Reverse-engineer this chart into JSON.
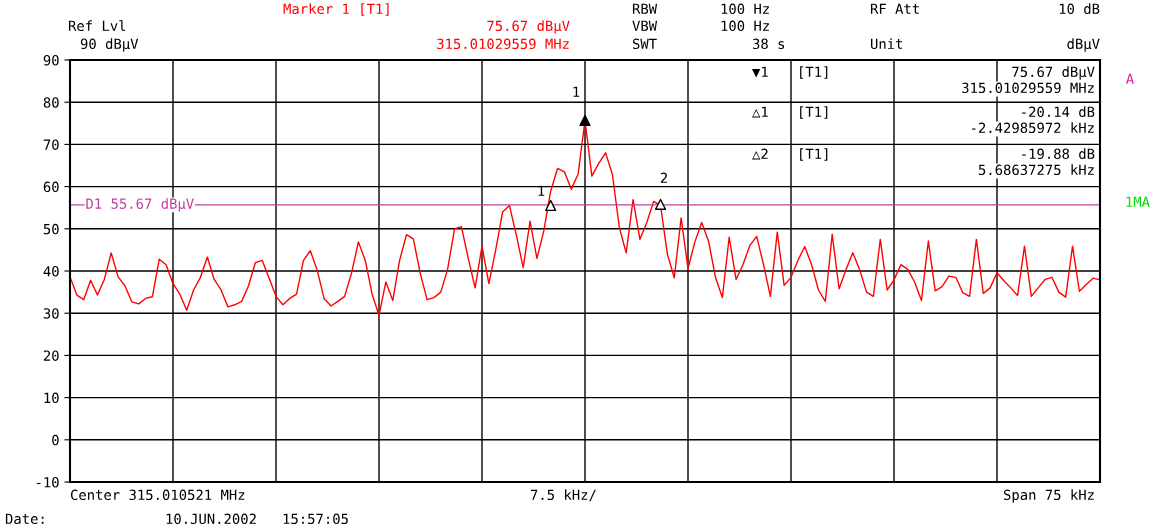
{
  "chart_data": {
    "type": "line",
    "categories": [
      null,
      null,
      null,
      null,
      null,
      null,
      null,
      null,
      null,
      null,
      null,
      null,
      null,
      null,
      null,
      null,
      null,
      null,
      null,
      null,
      null,
      null,
      null,
      null,
      null,
      null,
      null,
      null,
      null,
      null,
      null,
      null,
      null,
      null,
      null,
      null,
      null,
      null,
      null,
      null,
      null,
      null,
      null,
      null,
      null,
      null,
      null,
      null,
      null,
      null,
      null,
      null,
      null,
      null,
      null,
      null,
      null,
      null,
      null,
      null,
      null,
      null,
      null,
      null,
      null,
      null,
      null,
      null,
      null,
      null,
      null,
      null,
      null,
      null,
      null,
      null,
      null,
      null,
      null,
      null,
      null,
      null,
      null,
      null,
      null,
      null,
      null,
      null,
      null,
      null,
      null,
      null,
      null,
      null,
      null,
      null,
      null,
      null,
      null,
      null,
      null,
      null,
      null,
      null,
      null,
      null,
      null,
      null,
      null,
      null,
      null,
      null,
      null,
      null,
      null,
      null,
      null,
      null,
      null,
      null,
      null,
      null,
      null,
      null,
      null,
      null,
      null,
      null,
      null,
      null,
      null,
      null,
      null,
      null,
      null,
      null,
      null,
      null,
      null,
      null,
      null,
      null,
      null,
      null,
      null,
      null,
      null,
      null,
      null,
      null,
      null
    ],
    "series": [
      {
        "color": "#ff0000",
        "marker": "none",
        "values": [
          38.6,
          34.3,
          33.2,
          37.8,
          34.3,
          38.0,
          44.3,
          38.6,
          36.5,
          32.7,
          32.2,
          33.5,
          33.9,
          42.8,
          41.5,
          37.0,
          34.5,
          30.7,
          35.5,
          38.5,
          43.3,
          38.0,
          35.5,
          31.5,
          32.0,
          32.8,
          36.5,
          42.0,
          42.5,
          38.3,
          34.0,
          32.0,
          33.5,
          34.5,
          42.5,
          44.8,
          40.2,
          33.5,
          31.7,
          32.8,
          34.0,
          39.5,
          46.9,
          42.5,
          34.5,
          29.5,
          37.4,
          33.0,
          42.5,
          48.6,
          47.6,
          39.5,
          33.2,
          33.7,
          35.0,
          40.5,
          50.0,
          50.5,
          43.0,
          36.0,
          45.9,
          37.0,
          45.0,
          54.0,
          55.5,
          48.5,
          40.8,
          51.8,
          43.0,
          49.5,
          58.9,
          64.3,
          63.5,
          59.4,
          63.0,
          75.67,
          62.5,
          65.5,
          68.0,
          62.8,
          50.3,
          44.3,
          56.9,
          47.5,
          51.5,
          56.5,
          55.5,
          44.0,
          38.4,
          52.6,
          40.6,
          46.9,
          51.5,
          47.0,
          38.5,
          33.7,
          48.0,
          38.0,
          41.5,
          46.0,
          48.2,
          41.5,
          34.0,
          49.2,
          36.6,
          38.5,
          42.5,
          45.8,
          41.5,
          35.5,
          32.8,
          48.7,
          35.8,
          40.3,
          44.3,
          40.3,
          35.0,
          34.0,
          47.5,
          35.5,
          37.9,
          41.5,
          40.4,
          37.4,
          33.0,
          47.1,
          35.3,
          36.3,
          38.8,
          38.5,
          34.9,
          34.0,
          47.5,
          34.7,
          36.0,
          39.6,
          37.7,
          36.0,
          34.2,
          45.9,
          34.0,
          36.0,
          38.0,
          38.5,
          35.0,
          33.8,
          45.9,
          35.2,
          36.8,
          38.3,
          37.9
        ]
      },
      {
        "type": "scatter",
        "color": "#000000",
        "marker": "triangle",
        "values": [
          null,
          null,
          null,
          null,
          null,
          null,
          null,
          null,
          null,
          null,
          null,
          null,
          null,
          null,
          null,
          null,
          null,
          null,
          null,
          null,
          null,
          null,
          null,
          null,
          null,
          null,
          null,
          null,
          null,
          null,
          null,
          null,
          null,
          null,
          null,
          null,
          null,
          null,
          null,
          null,
          null,
          null,
          null,
          null,
          null,
          null,
          null,
          null,
          null,
          null,
          null,
          null,
          null,
          null,
          null,
          null,
          null,
          null,
          null,
          null,
          null,
          null,
          null,
          null,
          null,
          null,
          null,
          null,
          null,
          null,
          null,
          null,
          null,
          null,
          null,
          75.67,
          null,
          null,
          null,
          null,
          null,
          null,
          null,
          null,
          null,
          null,
          null,
          null,
          null,
          null,
          null,
          null,
          null,
          null,
          null,
          null,
          null,
          null,
          null,
          null,
          null,
          null,
          null,
          null,
          null,
          null,
          null,
          null,
          null,
          null,
          null,
          null,
          null,
          null,
          null,
          null,
          null,
          null,
          null,
          null,
          null,
          null,
          null,
          null,
          null,
          null,
          null,
          null,
          null,
          null,
          null,
          null,
          null,
          null,
          null,
          null,
          null,
          null,
          null,
          null,
          null,
          null,
          null,
          null,
          null,
          null,
          null,
          null,
          null,
          null,
          null
        ]
      },
      {
        "type": "scatter",
        "color": "#ffffff",
        "marker": "triangle",
        "values": [
          null,
          null,
          null,
          null,
          null,
          null,
          null,
          null,
          null,
          null,
          null,
          null,
          null,
          null,
          null,
          null,
          null,
          null,
          null,
          null,
          null,
          null,
          null,
          null,
          null,
          null,
          null,
          null,
          null,
          null,
          null,
          null,
          null,
          null,
          null,
          null,
          null,
          null,
          null,
          null,
          null,
          null,
          null,
          null,
          null,
          null,
          null,
          null,
          null,
          null,
          null,
          null,
          null,
          null,
          null,
          null,
          null,
          null,
          null,
          null,
          null,
          null,
          null,
          null,
          null,
          null,
          null,
          null,
          null,
          null,
          55.53,
          null,
          null,
          null,
          null,
          null,
          null,
          null,
          null,
          null,
          null,
          null,
          null,
          null,
          null,
          null,
          55.79,
          null,
          null,
          null,
          null,
          null,
          null,
          null,
          null,
          null,
          null,
          null,
          null,
          null,
          null,
          null,
          null,
          null,
          null,
          null,
          null,
          null,
          null,
          null,
          null,
          null,
          null,
          null,
          null,
          null,
          null,
          null,
          null,
          null,
          null,
          null,
          null,
          null,
          null,
          null,
          null,
          null,
          null,
          null,
          null,
          null,
          null,
          null,
          null,
          null,
          null,
          null,
          null,
          null,
          null,
          null,
          null,
          null,
          null,
          null,
          null,
          null,
          null,
          null,
          null
        ]
      }
    ],
    "ylim": [
      -10,
      90
    ],
    "yticks": [
      -10,
      0,
      10,
      20,
      30,
      40,
      50,
      60,
      70,
      80,
      90
    ],
    "grid": true,
    "line_style": "solid",
    "ref_lines": [
      {
        "axis": "y",
        "value": 55.67,
        "label": "D1 55.67 dBµV",
        "color": "#c040a0"
      }
    ],
    "annotations": [
      "Ref Lvl",
      "90 dBµV",
      "Marker 1 [T1]",
      "75.67 dBµV",
      "315.01029559 MHz",
      "RBW",
      "100 Hz",
      "VBW",
      "100 Hz",
      "SWT",
      "38 s",
      "RF Att",
      "10 dB",
      "Unit",
      "dBµV",
      "▼1",
      "[T1]",
      "75.67 dBµV",
      "315.01029559 MHz",
      "△1",
      "[T1]",
      "-20.14 dB",
      "-2.42985972 kHz",
      "△2",
      "[T1]",
      "-19.88 dB",
      "5.68637275 kHz",
      "A",
      "1MA",
      "Center 315.010521 MHz",
      "7.5 kHz/",
      "Span 75 kHz",
      "Date:",
      "10.JUN.2002   15:57:05",
      "1",
      "1",
      "2"
    ]
  }
}
